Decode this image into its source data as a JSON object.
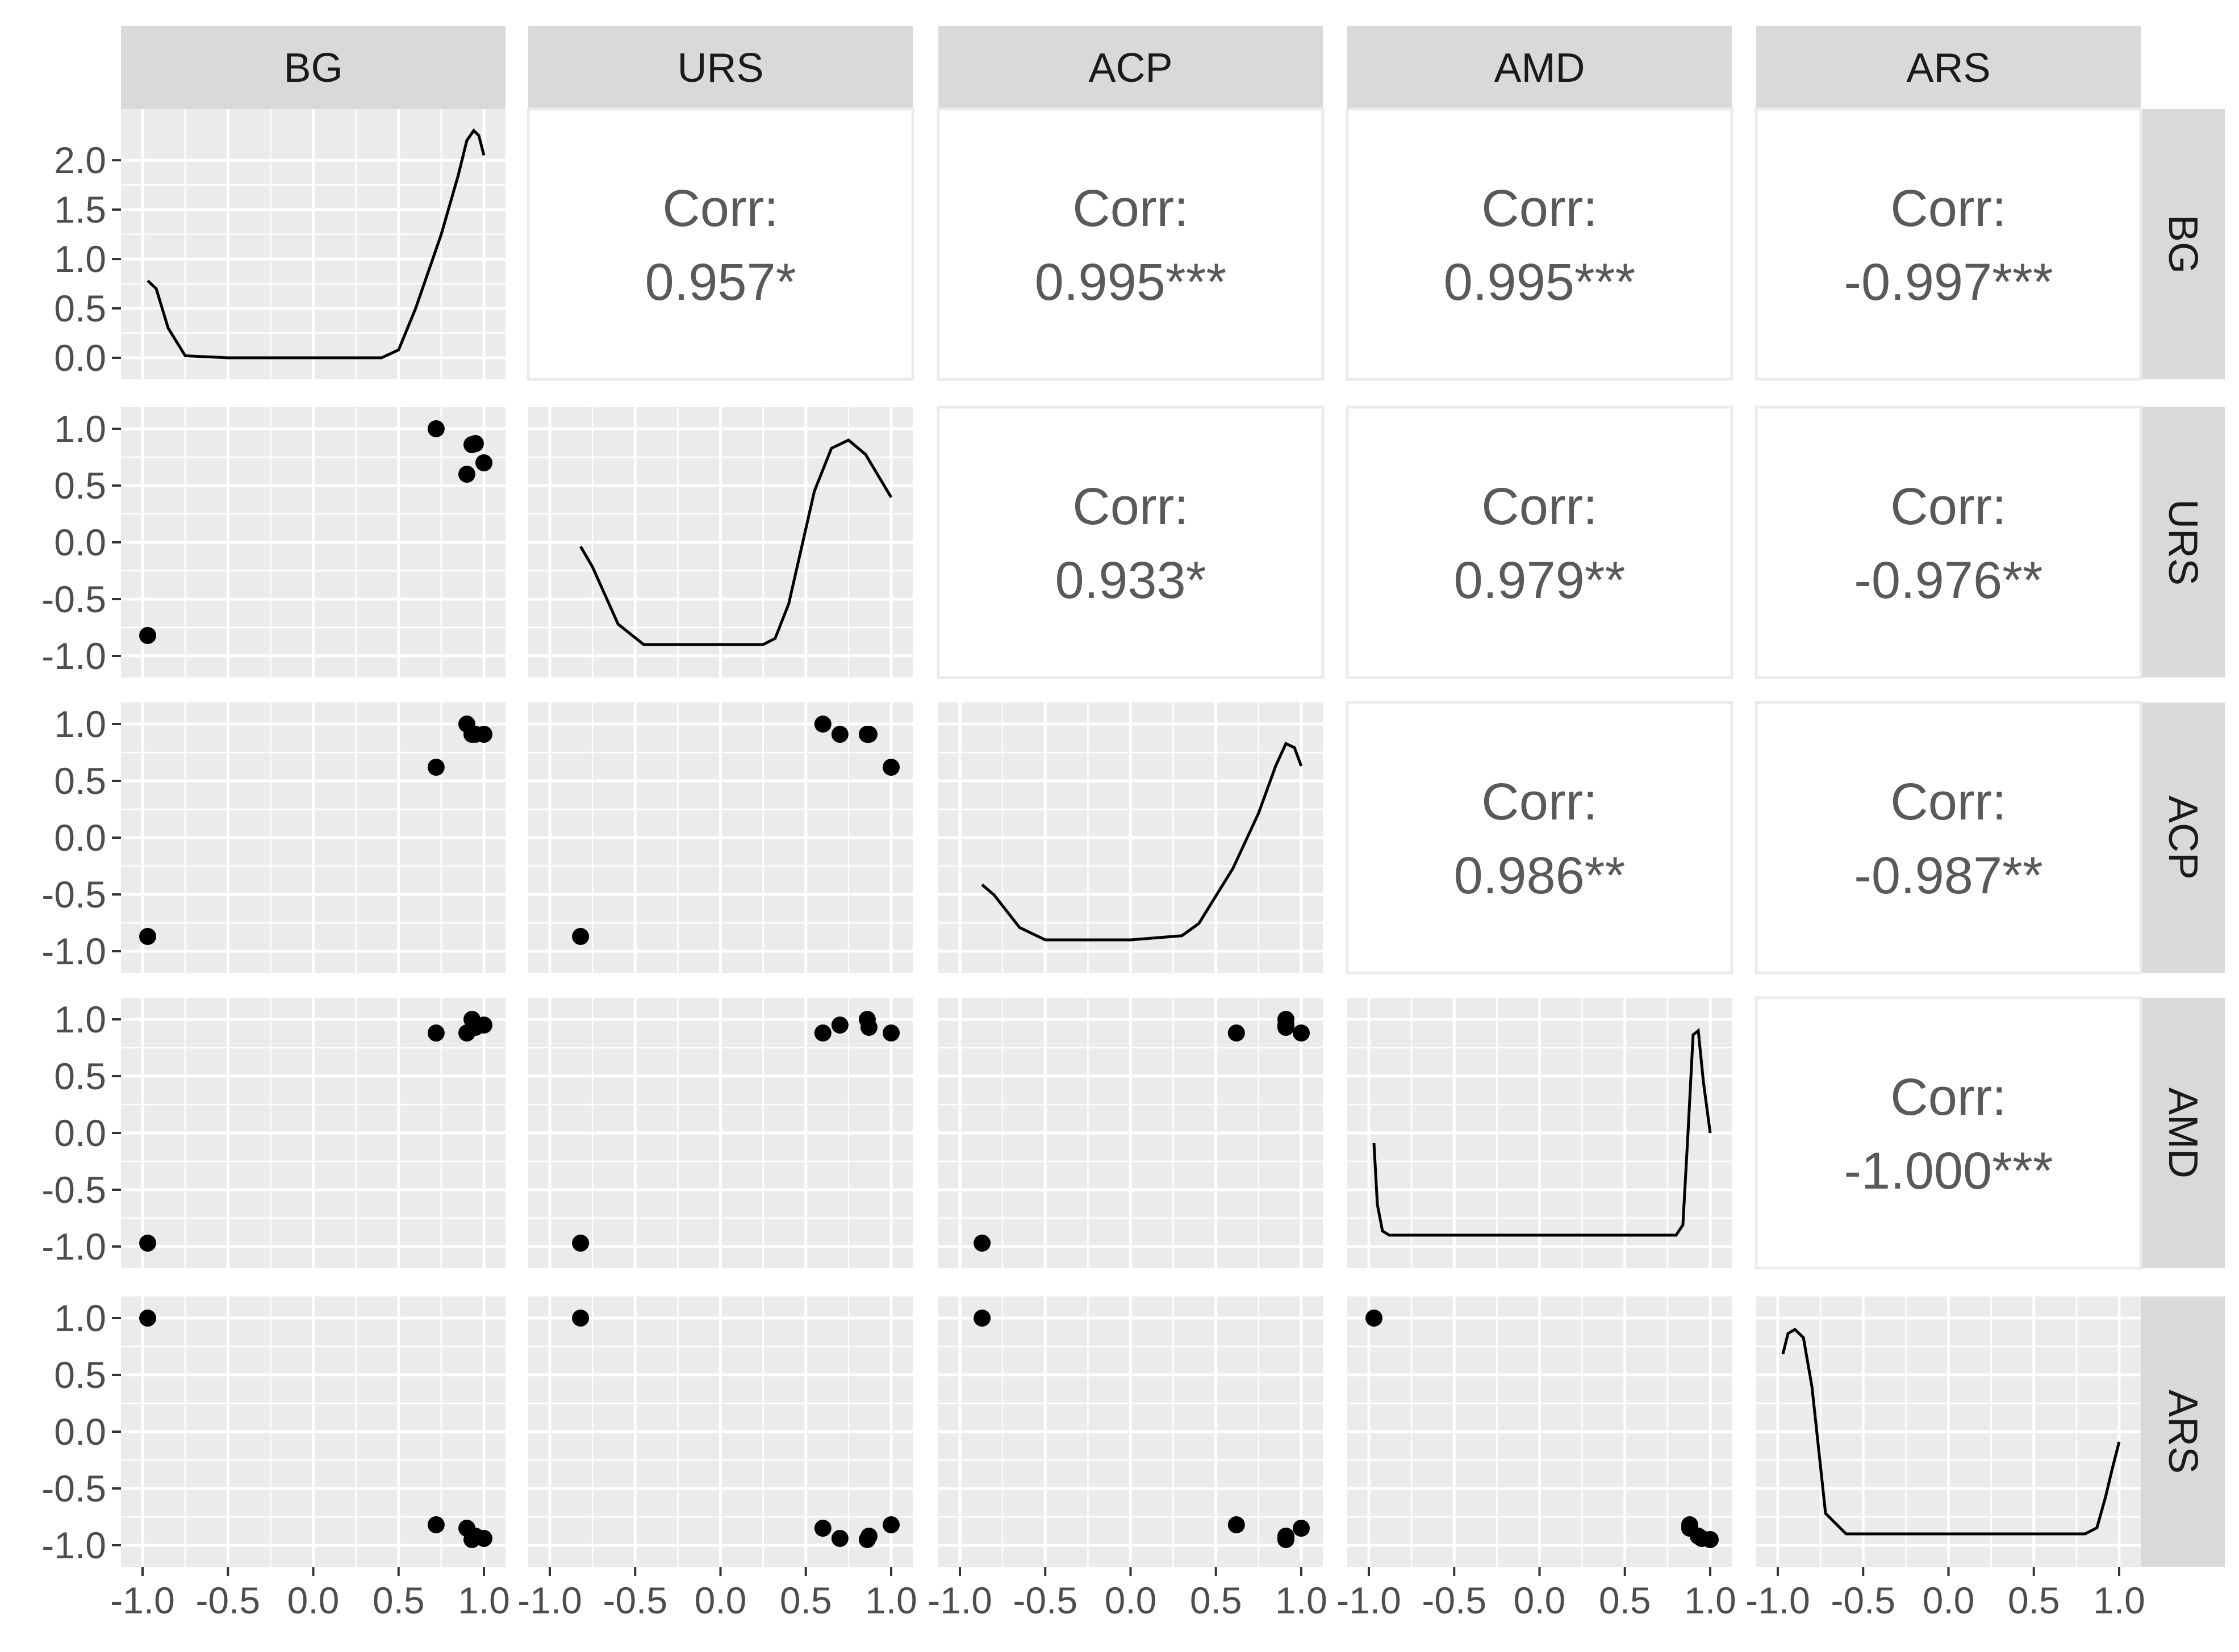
{
  "chart_data": {
    "type": "scatter",
    "variables": [
      "BG",
      "URS",
      "ACP",
      "AMD",
      "ARS"
    ],
    "correlations": [
      {
        "row": "BG",
        "col": "URS",
        "label": "Corr:",
        "value": "0.957*"
      },
      {
        "row": "BG",
        "col": "ACP",
        "label": "Corr:",
        "value": "0.995***"
      },
      {
        "row": "BG",
        "col": "AMD",
        "label": "Corr:",
        "value": "0.995***"
      },
      {
        "row": "BG",
        "col": "ARS",
        "label": "Corr:",
        "value": "-0.997***"
      },
      {
        "row": "URS",
        "col": "ACP",
        "label": "Corr:",
        "value": "0.933*"
      },
      {
        "row": "URS",
        "col": "AMD",
        "label": "Corr:",
        "value": "0.979**"
      },
      {
        "row": "URS",
        "col": "ARS",
        "label": "Corr:",
        "value": "-0.976**"
      },
      {
        "row": "ACP",
        "col": "AMD",
        "label": "Corr:",
        "value": "0.986**"
      },
      {
        "row": "ACP",
        "col": "ARS",
        "label": "Corr:",
        "value": "-0.987**"
      },
      {
        "row": "AMD",
        "col": "ARS",
        "label": "Corr:",
        "value": "-1.000***"
      }
    ],
    "observations": {
      "BG": [
        -0.97,
        0.72,
        0.9,
        0.93,
        0.95,
        1.0
      ],
      "URS": [
        -0.82,
        1.0,
        0.6,
        0.86,
        0.87,
        0.7
      ],
      "ACP": [
        -0.87,
        0.62,
        1.0,
        0.91,
        0.91,
        0.91
      ],
      "AMD": [
        -0.97,
        0.88,
        0.88,
        1.0,
        0.93,
        0.95
      ],
      "ARS": [
        1.0,
        -0.82,
        -0.85,
        -0.95,
        -0.92,
        -0.94
      ]
    },
    "densities": {
      "BG": {
        "ticks": [
          "0.0",
          "0.5",
          "1.0",
          "1.5",
          "2.0"
        ],
        "ymax": 2.3,
        "x": [
          -0.97,
          -0.92,
          -0.85,
          -0.75,
          -0.5,
          0,
          0.4,
          0.5,
          0.6,
          0.75,
          0.85,
          0.9,
          0.94,
          0.97,
          1.0
        ],
        "y": [
          0.78,
          0.7,
          0.3,
          0.02,
          0,
          0,
          0,
          0.08,
          0.5,
          1.25,
          1.85,
          2.2,
          2.3,
          2.25,
          2.05
        ]
      },
      "URS": {
        "x": [
          -0.82,
          -0.75,
          -0.6,
          -0.45,
          0,
          0.25,
          0.32,
          0.4,
          0.55,
          0.65,
          0.75,
          0.85,
          1.0
        ],
        "y": [
          0.48,
          0.38,
          0.1,
          0,
          0,
          0,
          0.03,
          0.2,
          0.75,
          0.96,
          1.0,
          0.93,
          0.72
        ]
      },
      "ACP": {
        "x": [
          -0.87,
          -0.8,
          -0.65,
          -0.5,
          0,
          0.3,
          0.4,
          0.6,
          0.75,
          0.85,
          0.91,
          0.96,
          1.0
        ],
        "y": [
          0.27,
          0.22,
          0.06,
          0,
          0,
          0.02,
          0.08,
          0.35,
          0.62,
          0.85,
          0.96,
          0.94,
          0.85
        ]
      },
      "AMD": {
        "x": [
          -0.97,
          -0.95,
          -0.92,
          -0.88,
          0,
          0.8,
          0.84,
          0.87,
          0.9,
          0.93,
          0.96,
          1.0
        ],
        "y": [
          0.45,
          0.15,
          0.02,
          0,
          0,
          0,
          0.05,
          0.5,
          0.98,
          1.0,
          0.75,
          0.5
        ]
      },
      "ARS": {
        "x": [
          -0.97,
          -0.94,
          -0.9,
          -0.85,
          -0.8,
          -0.72,
          -0.6,
          0,
          0.8,
          0.87,
          0.92,
          0.96,
          1.0
        ],
        "y": [
          0.88,
          0.98,
          1.0,
          0.96,
          0.72,
          0.1,
          0,
          0,
          0,
          0.03,
          0.18,
          0.32,
          0.45
        ]
      }
    },
    "axis": {
      "range": [
        -1.0,
        1.0
      ],
      "ticks": [
        "-1.0",
        "-0.5",
        "0.0",
        "0.5",
        "1.0"
      ]
    },
    "grid": true,
    "legend": "none"
  }
}
